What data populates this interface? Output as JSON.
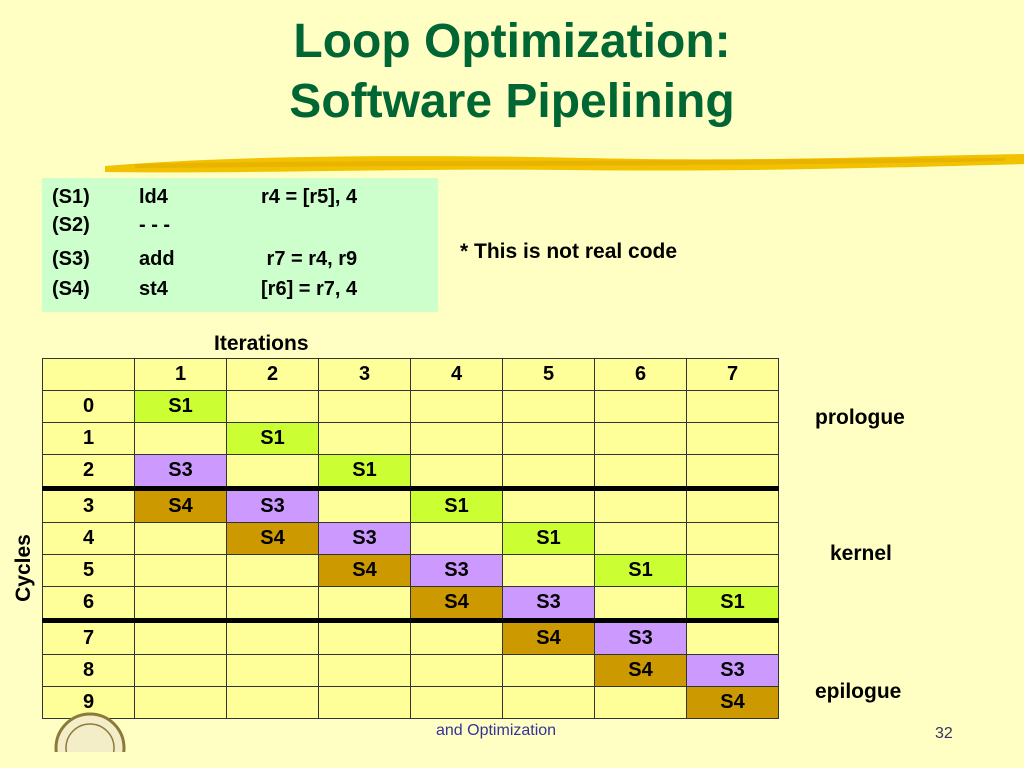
{
  "title": {
    "line1": "Loop Optimization:",
    "line2": "Software Pipelining"
  },
  "code": [
    {
      "label": "(S1)",
      "op": "ld4",
      "operands": "r4 = [r5], 4"
    },
    {
      "label": "(S2)",
      "op": "- - -",
      "operands": ""
    },
    {
      "label": "(S3)",
      "op": "add",
      "operands": " r7 = r4, r9"
    },
    {
      "label": "(S4)",
      "op": "st4",
      "operands": "[r6] = r7, 4"
    }
  ],
  "note": "* This is not real code",
  "iterations_label": "Iterations",
  "cycles_label": "Cycles",
  "table": {
    "header": [
      "",
      "1",
      "2",
      "3",
      "4",
      "5",
      "6",
      "7"
    ],
    "rows": [
      [
        "0",
        "S1",
        "",
        "",
        "",
        "",
        "",
        ""
      ],
      [
        "1",
        "",
        "S1",
        "",
        "",
        "",
        "",
        ""
      ],
      [
        "2",
        "S3",
        "",
        "S1",
        "",
        "",
        "",
        ""
      ],
      [
        "3",
        "S4",
        "S3",
        "",
        "S1",
        "",
        "",
        ""
      ],
      [
        "4",
        "",
        "S4",
        "S3",
        "",
        "S1",
        "",
        ""
      ],
      [
        "5",
        "",
        "",
        "S4",
        "S3",
        "",
        "S1",
        ""
      ],
      [
        "6",
        "",
        "",
        "",
        "S4",
        "S3",
        "",
        "S1"
      ],
      [
        "7",
        "",
        "",
        "",
        "",
        "S4",
        "S3",
        ""
      ],
      [
        "8",
        "",
        "",
        "",
        "",
        "",
        "S4",
        "S3"
      ],
      [
        "9",
        "",
        "",
        "",
        "",
        "",
        "",
        "S4"
      ]
    ]
  },
  "phases": {
    "prologue": "prologue",
    "kernel": "kernel",
    "epilogue": "epilogue"
  },
  "footer_text": "and Optimization",
  "page_number": "32",
  "colors": {
    "background": "#FFFFC4",
    "title": "#006633",
    "code_box": "#CCFFCC",
    "cell_default": "#FFFF99",
    "S1": "#CCFF33",
    "S3": "#CC99FF",
    "S4": "#CC9900"
  }
}
